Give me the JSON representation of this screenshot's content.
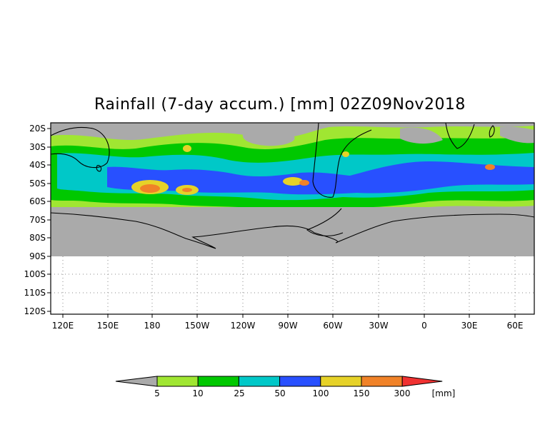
{
  "title": "Rainfall (7-day accum.) [mm] 02Z09Nov2018",
  "lat_ticks": [
    "20S",
    "30S",
    "40S",
    "50S",
    "60S",
    "70S",
    "80S",
    "90S",
    "100S",
    "110S",
    "120S"
  ],
  "lon_ticks": [
    "120E",
    "150E",
    "180",
    "150W",
    "120W",
    "90W",
    "60W",
    "30W",
    "0",
    "30E",
    "60E"
  ],
  "legend": {
    "bins": [
      "5",
      "10",
      "25",
      "50",
      "100",
      "150",
      "300"
    ],
    "unit": "[mm]",
    "colors": [
      "#aaaaaa",
      "#a0e632",
      "#00c800",
      "#00c8c8",
      "#2850ff",
      "#e6d228",
      "#f08228",
      "#f03232"
    ]
  },
  "map": {
    "land_color": "#aaaaaa",
    "no_data_color": "#ffffff",
    "grid": "dotted"
  }
}
